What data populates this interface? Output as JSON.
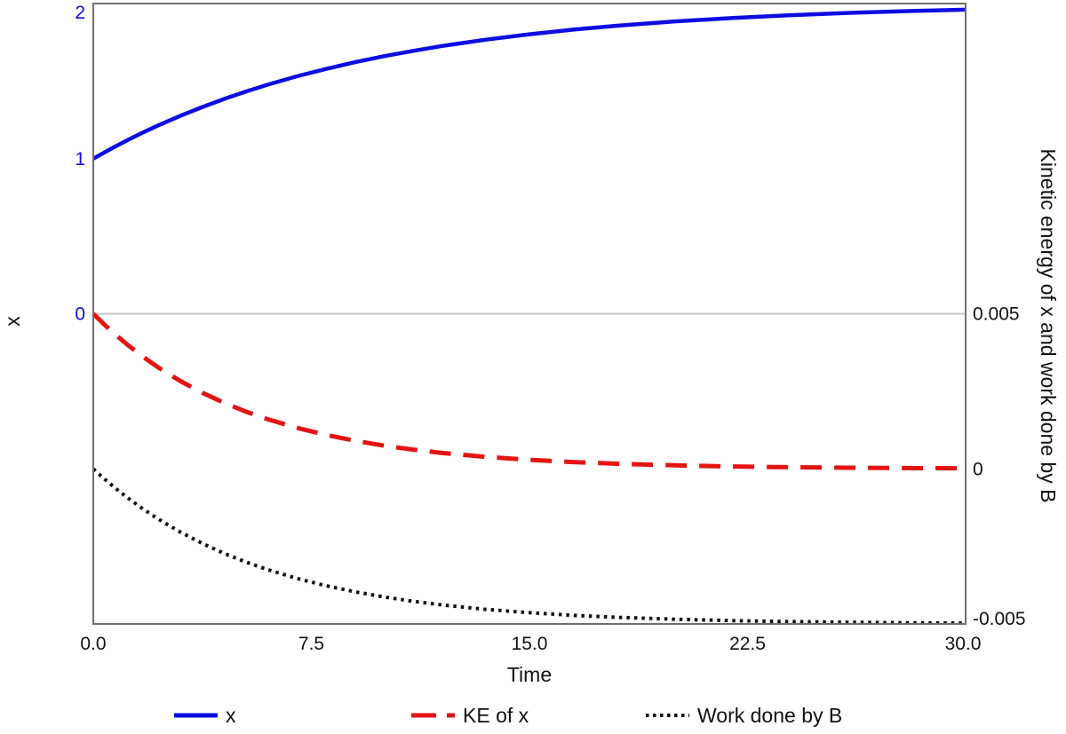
{
  "figure": {
    "background": "#ffffff",
    "axis_line_color": "#6f6f6f",
    "zero_line_color": "#c8c8c8",
    "text_color": "#111111"
  },
  "chart_data": {
    "type": "line",
    "title": "",
    "x_axis": {
      "label": "Time",
      "range": [
        0,
        30
      ],
      "tick_values": [
        0,
        7.5,
        15,
        22.5,
        30
      ],
      "tick_labels": [
        "0.0",
        "7.5",
        "15.0",
        "22.5",
        "30.0"
      ]
    },
    "y_axis_left": {
      "label": "x",
      "range": [
        -2,
        2
      ],
      "tick_values": [
        0,
        1,
        2
      ],
      "tick_labels": [
        "0",
        "1",
        "2"
      ],
      "tick_color": "#0d0de2",
      "zero_line_value": 0,
      "grid": false
    },
    "y_axis_right": {
      "label": "Kinetic energy of x and work done by B",
      "range": [
        -0.005,
        0.015
      ],
      "tick_values": [
        0.005,
        0,
        -0.005
      ],
      "tick_labels": [
        "0.005",
        "0",
        "-0.005"
      ],
      "tick_color": "#111111"
    },
    "legend": {
      "position": "bottom",
      "items": [
        "x",
        "KE of x",
        "Work done by B"
      ]
    },
    "t": [
      0,
      0.4,
      0.8,
      1.2,
      1.7,
      2.25,
      3,
      3.75,
      4.5,
      5.25,
      6,
      7,
      8,
      9,
      10,
      11,
      12,
      13.5,
      15,
      16.5,
      18,
      20,
      22,
      24,
      26,
      28,
      30
    ],
    "series": [
      {
        "name": "x",
        "axis": "left",
        "color": "#0d0de2",
        "style": "solid",
        "width": 4.5,
        "values": [
          1.0,
          1.0423,
          1.0828,
          1.1216,
          1.1677,
          1.2157,
          1.2768,
          1.333,
          1.3849,
          1.4328,
          1.4769,
          1.5305,
          1.5785,
          1.6217,
          1.6604,
          1.6952,
          1.7264,
          1.7673,
          1.8021,
          1.8317,
          1.8569,
          1.8847,
          1.9071,
          1.9251,
          1.9397,
          1.9514,
          1.9608
        ]
      },
      {
        "name": "KE of x",
        "axis": "right",
        "color": "#e41414",
        "style": "dashed",
        "width": 5,
        "values": [
          0.005,
          0.0046341,
          0.0042949,
          0.0039806,
          0.0036199,
          0.0032607,
          0.0028276,
          0.0024521,
          0.0021264,
          0.001844,
          0.0015991,
          0.0013224,
          0.0010936,
          0.0009044,
          0.0007479,
          0.0006185,
          0.0005114,
          0.0003846,
          0.0002892,
          0.0002175,
          0.0001635,
          0.0001119,
          7.66e-05,
          5.23e-05,
          3.57e-05,
          2.44e-05,
          1.67e-05
        ]
      },
      {
        "name": "Work done by B",
        "axis": "right",
        "color": "#111111",
        "style": "dotted",
        "width": 4,
        "values": [
          0.0,
          -0.000338,
          -0.000653,
          -0.000947,
          -0.001287,
          -0.001627,
          -0.002042,
          -0.002406,
          -0.002725,
          -0.003005,
          -0.00325,
          -0.003531,
          -0.003767,
          -0.003965,
          -0.004131,
          -0.004271,
          -0.004388,
          -0.00453,
          -0.004638,
          -0.004722,
          -0.004786,
          -0.004849,
          -0.004894,
          -0.004925,
          -0.004947,
          -0.004963,
          -0.004974
        ]
      }
    ]
  }
}
